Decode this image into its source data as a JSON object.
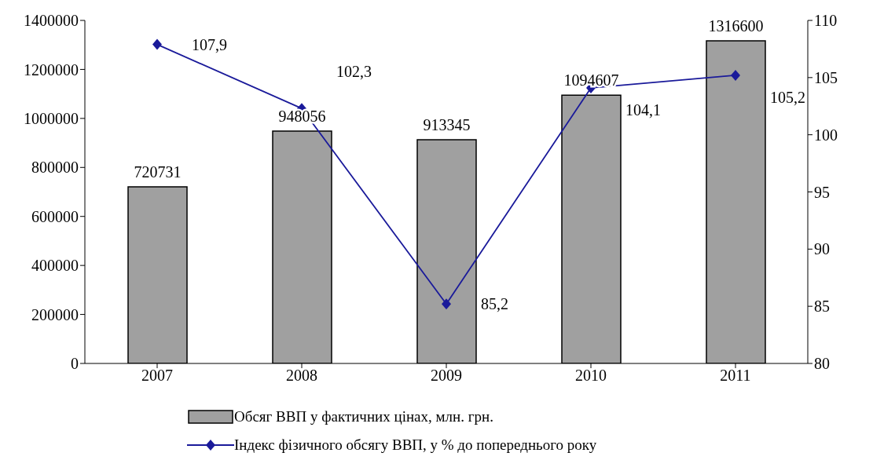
{
  "chart_data": {
    "type": "bar",
    "categories": [
      "2007",
      "2008",
      "2009",
      "2010",
      "2011"
    ],
    "series": [
      {
        "name": "Обсяг ВВП у фактичних цінах, млн. грн.",
        "color": "#a0a0a0",
        "values": [
          720731,
          948056,
          913345,
          1094607,
          1316600
        ],
        "value_labels": [
          "720731",
          "948056",
          "913345",
          "1094607",
          "1316600"
        ]
      },
      {
        "name": "Індекс фізичного обсягу ВВП, у % до попереднього року",
        "type": "line",
        "axis": "y2",
        "color": "#1a1a9a",
        "values": [
          107.9,
          102.3,
          85.2,
          104.1,
          105.2
        ],
        "value_labels": [
          "107,9",
          "102,3",
          "85,2",
          "104,1",
          "105,2"
        ]
      }
    ],
    "ylim": [
      0,
      1400000
    ],
    "yticks": [
      0,
      200000,
      400000,
      600000,
      800000,
      1000000,
      1200000,
      1400000
    ],
    "y2lim": [
      80,
      110
    ],
    "y2ticks": [
      80,
      85,
      90,
      95,
      100,
      105,
      110
    ],
    "grid": false,
    "legend": "bottom",
    "marker": "diamond",
    "line_style": "solid"
  }
}
